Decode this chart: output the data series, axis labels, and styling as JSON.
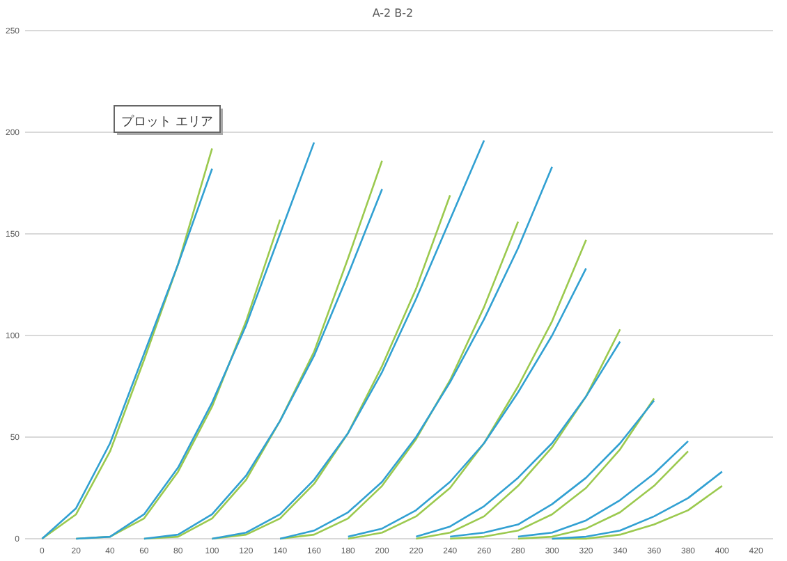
{
  "chart_data": {
    "type": "line",
    "title": "A-2 B-2",
    "annotations": [
      "プロット エリア"
    ],
    "xlim": [
      -10,
      430
    ],
    "ylim": [
      0,
      250
    ],
    "xticks": [
      0,
      20,
      40,
      60,
      80,
      100,
      120,
      140,
      160,
      180,
      200,
      220,
      240,
      260,
      280,
      300,
      320,
      340,
      360,
      380,
      400,
      420
    ],
    "yticks": [
      0,
      50,
      100,
      150,
      200,
      250
    ],
    "grid": "y",
    "marker": "none",
    "line_style": "solid",
    "series": [
      {
        "color": "#9bc94e",
        "x": [
          0,
          20,
          40,
          60,
          80,
          100
        ],
        "values": [
          0,
          12,
          43,
          88,
          135,
          192
        ]
      },
      {
        "color": "#31a0d2",
        "x": [
          0,
          20,
          40,
          60,
          80,
          100
        ],
        "values": [
          0,
          15,
          47,
          91,
          135,
          182
        ]
      },
      {
        "color": "#9bc94e",
        "x": [
          20,
          40,
          60,
          80,
          100,
          120,
          140
        ],
        "values": [
          0,
          1,
          10,
          33,
          65,
          107,
          157
        ]
      },
      {
        "color": "#31a0d2",
        "x": [
          20,
          40,
          60,
          80,
          100,
          120,
          140,
          160
        ],
        "values": [
          0,
          1,
          12,
          35,
          67,
          105,
          150,
          195
        ]
      },
      {
        "color": "#9bc94e",
        "x": [
          60,
          80,
          100,
          120,
          140,
          160,
          180,
          200
        ],
        "values": [
          0,
          1,
          10,
          29,
          58,
          92,
          138,
          186
        ]
      },
      {
        "color": "#31a0d2",
        "x": [
          60,
          80,
          100,
          120,
          140,
          160,
          180,
          200
        ],
        "values": [
          0,
          2,
          12,
          31,
          58,
          90,
          130,
          172
        ]
      },
      {
        "color": "#9bc94e",
        "x": [
          100,
          120,
          140,
          160,
          180,
          200,
          220,
          240
        ],
        "values": [
          0,
          2,
          10,
          27,
          52,
          85,
          123,
          169
        ]
      },
      {
        "color": "#31a0d2",
        "x": [
          100,
          120,
          140,
          160,
          180,
          200,
          220,
          240,
          260
        ],
        "values": [
          0,
          3,
          12,
          29,
          52,
          82,
          118,
          157,
          196
        ]
      },
      {
        "color": "#9bc94e",
        "x": [
          140,
          160,
          180,
          200,
          220,
          240,
          260,
          280
        ],
        "values": [
          0,
          2,
          10,
          26,
          49,
          78,
          114,
          156
        ]
      },
      {
        "color": "#31a0d2",
        "x": [
          140,
          160,
          180,
          200,
          220,
          240,
          260,
          280,
          300
        ],
        "values": [
          0,
          4,
          13,
          28,
          50,
          77,
          108,
          143,
          183
        ]
      },
      {
        "color": "#9bc94e",
        "x": [
          180,
          200,
          220,
          240,
          260,
          280,
          300,
          320
        ],
        "values": [
          0,
          3,
          11,
          25,
          47,
          75,
          107,
          147
        ]
      },
      {
        "color": "#31a0d2",
        "x": [
          180,
          200,
          220,
          240,
          260,
          280,
          300,
          320
        ],
        "values": [
          1,
          5,
          14,
          28,
          47,
          72,
          100,
          133
        ]
      },
      {
        "color": "#9bc94e",
        "x": [
          220,
          240,
          260,
          280,
          300,
          320,
          340
        ],
        "values": [
          0,
          3,
          11,
          26,
          45,
          70,
          103
        ]
      },
      {
        "color": "#31a0d2",
        "x": [
          220,
          240,
          260,
          280,
          300,
          320,
          340
        ],
        "values": [
          1,
          6,
          16,
          30,
          47,
          70,
          97
        ]
      },
      {
        "color": "#9bc94e",
        "x": [
          240,
          260,
          280,
          300,
          320,
          340,
          360
        ],
        "values": [
          0,
          1,
          4,
          12,
          25,
          44,
          69
        ]
      },
      {
        "color": "#31a0d2",
        "x": [
          240,
          260,
          280,
          300,
          320,
          340,
          360
        ],
        "values": [
          1,
          3,
          7,
          17,
          30,
          47,
          68
        ]
      },
      {
        "color": "#9bc94e",
        "x": [
          280,
          300,
          320,
          340,
          360,
          380
        ],
        "values": [
          0,
          1,
          5,
          13,
          26,
          43
        ]
      },
      {
        "color": "#31a0d2",
        "x": [
          280,
          300,
          320,
          340,
          360,
          380
        ],
        "values": [
          1,
          3,
          9,
          19,
          32,
          48
        ]
      },
      {
        "color": "#9bc94e",
        "x": [
          300,
          320,
          340,
          360,
          380,
          400
        ],
        "values": [
          0,
          0,
          2,
          7,
          14,
          26
        ]
      },
      {
        "color": "#31a0d2",
        "x": [
          300,
          320,
          340,
          360,
          380,
          400
        ],
        "values": [
          0,
          1,
          4,
          11,
          20,
          33
        ]
      }
    ]
  }
}
